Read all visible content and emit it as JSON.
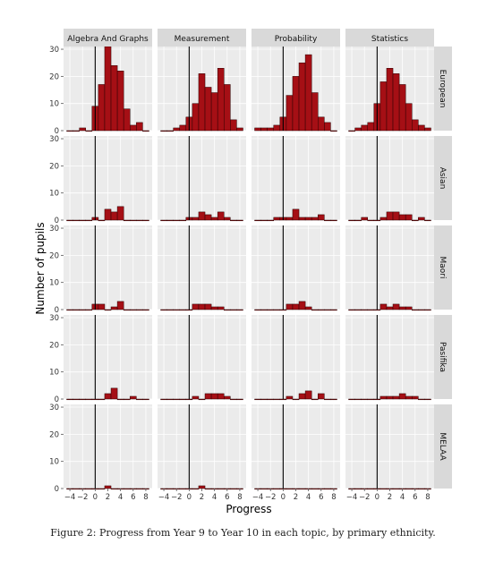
{
  "figure": {
    "caption": "Figure 2: Progress from Year 9 to Year 10 in each topic, by primary ethnicity."
  },
  "chart_data": {
    "type": "histogram-facet",
    "xlabel": "Progress",
    "ylabel": "Number of pupils",
    "column_facets": [
      "Algebra And Graphs",
      "Measurement",
      "Probability",
      "Statistics"
    ],
    "row_facets": [
      "European",
      "Asian",
      "Maori",
      "Pasifika",
      "MELAA"
    ],
    "x_ticks": [
      -4,
      -2,
      0,
      2,
      4,
      6,
      8
    ],
    "x_tick_labels": [
      "−4",
      "−2",
      "0",
      "2",
      "4",
      "6",
      "8"
    ],
    "y_ticks": [
      0,
      10,
      20,
      30
    ],
    "y_tick_labels": [
      "0",
      "10",
      "20",
      "30"
    ],
    "xlim": [
      -5,
      9
    ],
    "ylim": [
      0,
      31
    ],
    "vline_x": 0,
    "bins": [
      -4,
      -3,
      -2,
      -1,
      0,
      1,
      2,
      3,
      4,
      5,
      6,
      7,
      8
    ],
    "bin_width": 1,
    "bar_color": "#a50f15",
    "panel_bg": "#ebebeb",
    "strip_bg": "#d9d9d9",
    "counts": {
      "European": {
        "Algebra And Graphs": [
          0,
          0,
          1,
          0,
          9,
          17,
          31,
          24,
          22,
          8,
          2,
          3,
          0
        ],
        "Measurement": [
          0,
          0,
          1,
          2,
          5,
          10,
          21,
          16,
          14,
          23,
          17,
          4,
          1
        ],
        "Probability": [
          1,
          1,
          1,
          2,
          5,
          13,
          20,
          25,
          28,
          14,
          5,
          3,
          0
        ],
        "Statistics": [
          0,
          1,
          2,
          3,
          10,
          18,
          23,
          21,
          17,
          10,
          4,
          2,
          1
        ]
      },
      "Asian": {
        "Algebra And Graphs": [
          0,
          0,
          0,
          0,
          1,
          0,
          4,
          3,
          5,
          0,
          0,
          0,
          0
        ],
        "Measurement": [
          0,
          0,
          0,
          0,
          1,
          1,
          3,
          2,
          1,
          3,
          1,
          0,
          0
        ],
        "Probability": [
          0,
          0,
          0,
          1,
          1,
          1,
          4,
          1,
          1,
          1,
          2,
          0,
          0
        ],
        "Statistics": [
          0,
          0,
          1,
          0,
          0,
          1,
          3,
          3,
          2,
          2,
          0,
          1,
          0
        ]
      },
      "Maori": {
        "Algebra And Graphs": [
          0,
          0,
          0,
          0,
          2,
          2,
          0,
          1,
          3,
          0,
          0,
          0,
          0
        ],
        "Measurement": [
          0,
          0,
          0,
          0,
          0,
          2,
          2,
          2,
          1,
          1,
          0,
          0,
          0
        ],
        "Probability": [
          0,
          0,
          0,
          0,
          0,
          2,
          2,
          3,
          1,
          0,
          0,
          0,
          0
        ],
        "Statistics": [
          0,
          0,
          0,
          0,
          0,
          2,
          1,
          2,
          1,
          1,
          0,
          0,
          0
        ]
      },
      "Pasifika": {
        "Algebra And Graphs": [
          0,
          0,
          0,
          0,
          0,
          0,
          2,
          4,
          0,
          0,
          1,
          0,
          0
        ],
        "Measurement": [
          0,
          0,
          0,
          0,
          0,
          1,
          0,
          2,
          2,
          2,
          1,
          0,
          0
        ],
        "Probability": [
          0,
          0,
          0,
          0,
          0,
          1,
          0,
          2,
          3,
          0,
          2,
          0,
          0
        ],
        "Statistics": [
          0,
          0,
          0,
          0,
          0,
          1,
          1,
          1,
          2,
          1,
          1,
          0,
          0
        ]
      },
      "MELAA": {
        "Algebra And Graphs": [
          0,
          0,
          0,
          0,
          0,
          0,
          1,
          0,
          0,
          0,
          0,
          0,
          0
        ],
        "Measurement": [
          0,
          0,
          0,
          0,
          0,
          0,
          1,
          0,
          0,
          0,
          0,
          0,
          0
        ],
        "Probability": [
          0,
          0,
          0,
          0,
          0,
          0,
          0,
          0,
          0,
          0,
          0,
          0,
          0
        ],
        "Statistics": [
          0,
          0,
          0,
          0,
          0,
          0,
          0,
          0,
          0,
          0,
          0,
          0,
          0
        ]
      }
    }
  }
}
